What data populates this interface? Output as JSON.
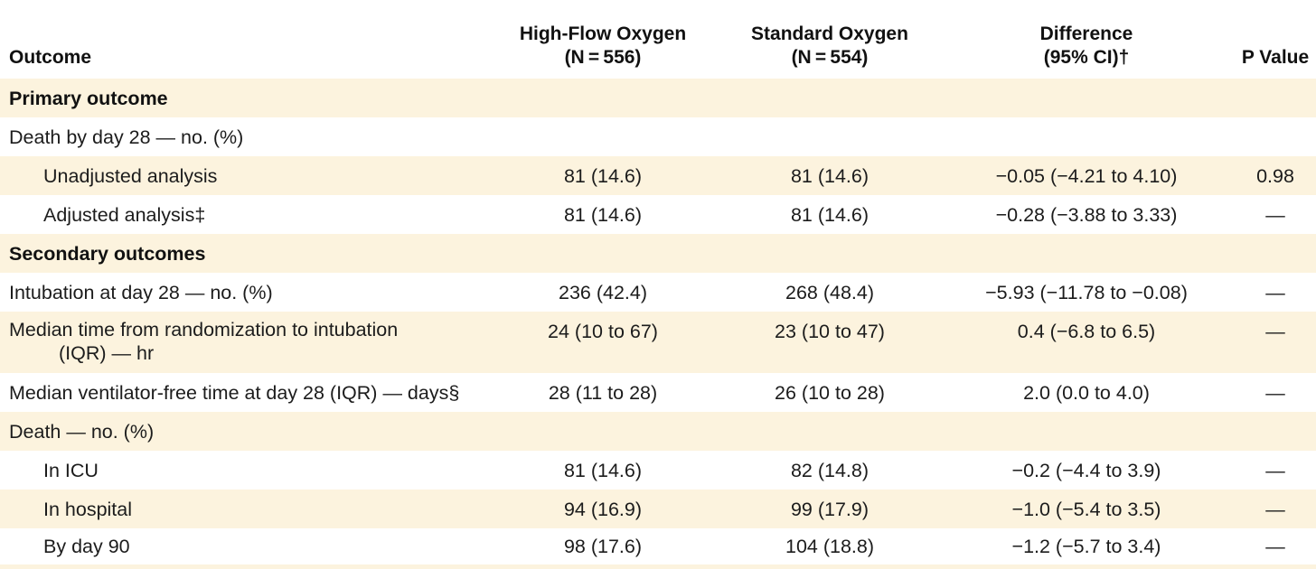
{
  "colors": {
    "row_stripe": "#fcf3de",
    "background": "#ffffff",
    "text": "#1c1c1c"
  },
  "table": {
    "columns": [
      {
        "label": "Outcome"
      },
      {
        "label": "High-Flow Oxygen",
        "sublabel": "(N = 556)"
      },
      {
        "label": "Standard Oxygen",
        "sublabel": "(N = 554)"
      },
      {
        "label": "Difference",
        "sublabel": "(95% CI)†"
      },
      {
        "label": "P Value"
      }
    ],
    "rows": [
      {
        "label": "Primary outcome",
        "type": "section"
      },
      {
        "label": "Death by day 28 — no. (%)",
        "type": "group-label"
      },
      {
        "label": "Unadjusted analysis",
        "type": "data-indent",
        "cells": [
          "81 (14.6)",
          "81 (14.6)",
          "−0.05 (−4.21 to 4.10)",
          "0.98"
        ]
      },
      {
        "label": "Adjusted analysis‡",
        "type": "data-indent",
        "cells": [
          "81 (14.6)",
          "81 (14.6)",
          "−0.28 (−3.88 to 3.33)",
          "—"
        ]
      },
      {
        "label": "Secondary outcomes",
        "type": "section"
      },
      {
        "label": "Intubation at day 28 — no. (%)",
        "type": "data",
        "cells": [
          "236 (42.4)",
          "268 (48.4)",
          "−5.93 (−11.78 to −0.08)",
          "—"
        ]
      },
      {
        "label": "Median time from randomization to intubation",
        "label2": "(IQR) — hr",
        "type": "data-wrap",
        "cells": [
          "24 (10 to 67)",
          "23 (10 to 47)",
          "0.4 (−6.8 to 6.5)",
          "—"
        ]
      },
      {
        "label": "Median ventilator-free time at day 28 (IQR) — days§",
        "type": "data",
        "cells": [
          "28 (11 to 28)",
          "26 (10 to 28)",
          "2.0 (0.0 to 4.0)",
          "—"
        ]
      },
      {
        "label": "Death — no. (%)",
        "type": "group-label"
      },
      {
        "label": "In ICU",
        "type": "data-indent",
        "cells": [
          "81 (14.6)",
          "82 (14.8)",
          "−0.2 (−4.4 to 3.9)",
          "—"
        ]
      },
      {
        "label": "In hospital",
        "type": "data-indent",
        "cells": [
          "94 (16.9)",
          "99 (17.9)",
          "−1.0 (−5.4 to 3.5)",
          "—"
        ]
      },
      {
        "label": "By day 90",
        "type": "data-indent",
        "cells": [
          "98 (17.6)",
          "104 (18.8)",
          "−1.2 (−5.7 to 3.4)",
          "—"
        ]
      }
    ]
  }
}
